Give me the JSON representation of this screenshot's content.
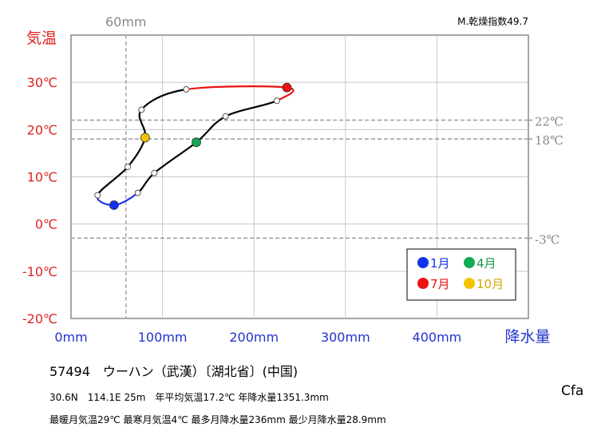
{
  "chart_data": {
    "type": "line",
    "title": "",
    "ylabel": "気温",
    "xlabel": "降水量",
    "index_label": "M.乾燥指数49.7",
    "xlim": [
      0,
      500
    ],
    "ylim": [
      -20,
      40
    ],
    "x_ticks": [
      "0mm",
      "100mm",
      "200mm",
      "300mm",
      "400mm"
    ],
    "x_tick_values": [
      0,
      100,
      200,
      300,
      400
    ],
    "y_ticks": [
      "30℃",
      "20℃",
      "10℃",
      "0℃",
      "-10℃",
      "-20℃"
    ],
    "y_tick_values": [
      30,
      20,
      10,
      0,
      -10,
      -20
    ],
    "reference_lines": {
      "precip": [
        {
          "value": 60,
          "label": "60mm"
        }
      ],
      "temp": [
        {
          "value": 22,
          "label": "22℃"
        },
        {
          "value": 18,
          "label": "18℃"
        },
        {
          "value": -3,
          "label": "-3℃"
        }
      ]
    },
    "months": [
      1,
      2,
      3,
      4,
      5,
      6,
      7,
      8,
      9,
      10,
      11,
      12
    ],
    "precip": [
      47,
      73,
      91,
      137,
      169,
      225,
      236,
      126,
      77,
      81,
      62,
      29
    ],
    "temp": [
      4,
      6.6,
      10.8,
      17.3,
      22.8,
      26.1,
      28.9,
      28.5,
      24.2,
      18.3,
      12.1,
      6.1
    ],
    "segment_colors": [
      "#2233ee",
      "#000000",
      "#000000",
      "#000000",
      "#000000",
      "#ee1111",
      "#ee1111",
      "#000000",
      "#000000",
      "#000000",
      "#000000",
      "#2233ee"
    ],
    "highlights": [
      {
        "month": 1,
        "label": "1月",
        "color": "#1133ee",
        "text_color": "#1133ee"
      },
      {
        "month": 4,
        "label": "4月",
        "color": "#11aa55",
        "text_color": "#119944"
      },
      {
        "month": 7,
        "label": "7月",
        "color": "#ee1111",
        "text_color": "#ee1111"
      },
      {
        "month": 10,
        "label": "10月",
        "color": "#f2c400",
        "text_color": "#d4a800"
      }
    ],
    "grid": true,
    "legend_position": "bottom-right",
    "colors": {
      "temp_axis": "#dd2222",
      "precip_axis": "#2233cc",
      "reference": "#888888",
      "axis": "#888888"
    }
  },
  "station": "57494　ウーハン（武漢）〔湖北省〕(中国)",
  "stats_line1": "30.6N　114.1E 25m　年平均気温17.2℃ 年降水量1351.3mm",
  "stats_line2": "最暖月気温29℃ 最寒月気温4℃ 最多月降水量236mm 最少月降水量28.9mm",
  "koppen": "Cfa"
}
